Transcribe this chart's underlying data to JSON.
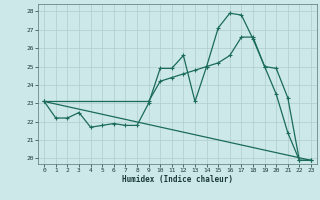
{
  "title": "",
  "xlabel": "Humidex (Indice chaleur)",
  "background_color": "#cde8e8",
  "grid_color": "#b0cccc",
  "line_color": "#1a6b5a",
  "ylim": [
    19.7,
    28.4
  ],
  "xlim": [
    -0.5,
    23.5
  ],
  "yticks": [
    20,
    21,
    22,
    23,
    24,
    25,
    26,
    27,
    28
  ],
  "xticks": [
    0,
    1,
    2,
    3,
    4,
    5,
    6,
    7,
    8,
    9,
    10,
    11,
    12,
    13,
    14,
    15,
    16,
    17,
    18,
    19,
    20,
    21,
    22,
    23
  ],
  "line1_x": [
    0,
    1,
    2,
    3,
    4,
    5,
    6,
    7,
    8,
    9,
    10,
    11,
    12,
    13,
    14,
    15,
    16,
    17,
    18,
    19,
    20,
    21,
    22,
    23
  ],
  "line1_y": [
    23.1,
    22.2,
    22.2,
    22.5,
    21.7,
    21.8,
    21.9,
    21.8,
    21.8,
    23.0,
    24.9,
    24.9,
    25.6,
    23.1,
    25.0,
    27.1,
    27.9,
    27.8,
    26.5,
    25.0,
    23.5,
    21.4,
    19.9,
    19.9
  ],
  "line2_x": [
    0,
    9,
    10,
    11,
    12,
    13,
    14,
    15,
    16,
    17,
    18,
    19,
    20,
    21,
    22,
    23
  ],
  "line2_y": [
    23.1,
    23.1,
    24.2,
    24.4,
    24.6,
    24.8,
    25.0,
    25.2,
    25.6,
    26.6,
    26.6,
    25.0,
    24.9,
    23.3,
    19.9,
    19.9
  ],
  "line3_x": [
    0,
    23
  ],
  "line3_y": [
    23.1,
    19.9
  ],
  "marker_size": 3.0,
  "line_width": 0.9
}
